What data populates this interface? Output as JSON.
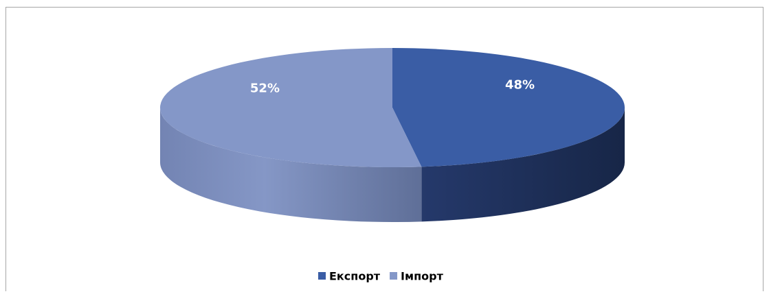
{
  "chart_data": {
    "type": "pie3d",
    "categories": [
      "Експорт",
      "Імпорт"
    ],
    "values": [
      48,
      52
    ],
    "value_labels": [
      "48%",
      "52%"
    ],
    "colors": [
      "#3a5da5",
      "#8497c8"
    ],
    "legend": "bottom"
  }
}
